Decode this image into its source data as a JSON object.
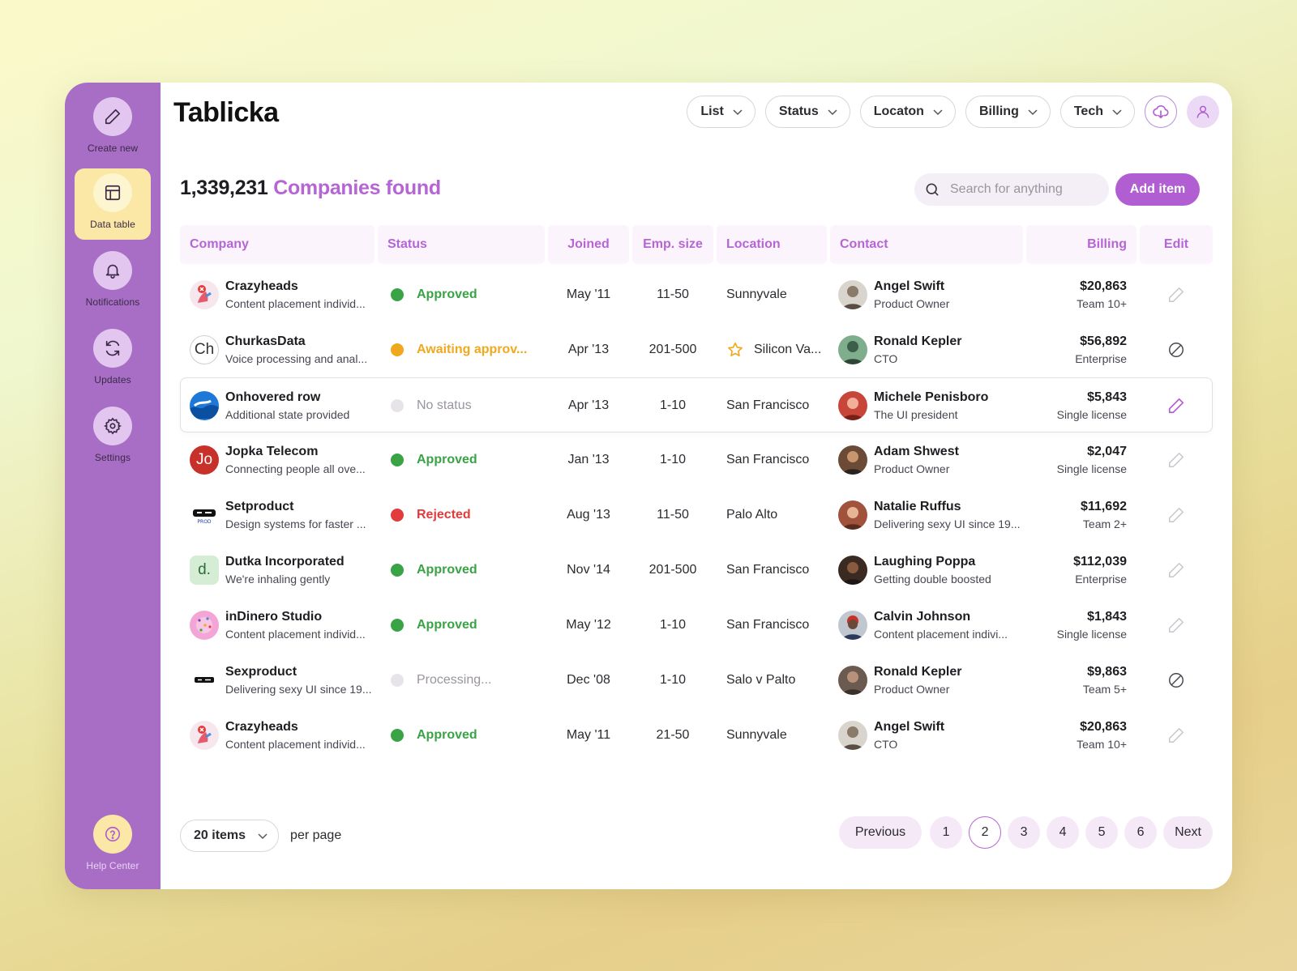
{
  "sidebar": {
    "items": [
      {
        "label": "Create new",
        "icon": "pencil-icon"
      },
      {
        "label": "Data table",
        "icon": "table-icon"
      },
      {
        "label": "Notifications",
        "icon": "bell-icon"
      },
      {
        "label": "Updates",
        "icon": "refresh-icon"
      },
      {
        "label": "Settings",
        "icon": "gear-icon"
      }
    ],
    "help": {
      "label": "Help Center",
      "icon": "help-icon"
    }
  },
  "header": {
    "logo": "Tablicka",
    "filters": [
      "List",
      "Status",
      "Locaton",
      "Billing",
      "Tech"
    ]
  },
  "summary": {
    "count": "1,339,231",
    "label": "Companies found"
  },
  "search": {
    "placeholder": "Search for anything"
  },
  "add_button": "Add item",
  "table": {
    "columns": [
      "Company",
      "Status",
      "Joined",
      "Emp. size",
      "Location",
      "Contact",
      "Billing",
      "Edit"
    ],
    "rows": [
      {
        "company": "Crazyheads",
        "desc": "Content placement individ...",
        "status": "Approved",
        "joined": "May '11",
        "size": "11-50",
        "location": "Sunnyvale",
        "contact": "Angel Swift",
        "role": "Product Owner",
        "amount": "$20,863",
        "plan": "Team 10+",
        "edit": "pencil"
      },
      {
        "company": "ChurkasData",
        "initials": "Ch",
        "desc": "Voice processing and anal...",
        "status": "Awaiting approv...",
        "joined": "Apr '13",
        "size": "201-500",
        "location": "Silicon Va...",
        "contact": "Ronald Kepler",
        "role": "CTO",
        "amount": "$56,892",
        "plan": "Enterprise",
        "edit": "blocked"
      },
      {
        "company": "Onhovered row",
        "desc": "Additional state provided",
        "status": "No status",
        "joined": "Apr '13",
        "size": "1-10",
        "location": "San Francisco",
        "contact": "Michele Penisboro",
        "role": "The UI president",
        "amount": "$5,843",
        "plan": "Single license",
        "edit": "pencil-active"
      },
      {
        "company": "Jopka Telecom",
        "initials": "Jo",
        "desc": "Connecting people all ove...",
        "status": "Approved",
        "joined": "Jan '13",
        "size": "1-10",
        "location": "San Francisco",
        "contact": "Adam Shwest",
        "role": "Product Owner",
        "amount": "$2,047",
        "plan": "Single license",
        "edit": "pencil"
      },
      {
        "company": "Setproduct",
        "desc": "Design systems for faster ...",
        "status": "Rejected",
        "joined": "Aug '13",
        "size": "11-50",
        "location": "Palo Alto",
        "contact": "Natalie Ruffus",
        "role": "Delivering sexy UI since 19...",
        "amount": "$11,692",
        "plan": "Team 2+",
        "edit": "pencil"
      },
      {
        "company": "Dutka Incorporated",
        "initials": "d.",
        "desc": "We're inhaling gently",
        "status": "Approved",
        "joined": "Nov '14",
        "size": "201-500",
        "location": "San Francisco",
        "contact": "Laughing Poppa",
        "role": "Getting double boosted",
        "amount": "$112,039",
        "plan": "Enterprise",
        "edit": "pencil"
      },
      {
        "company": "inDinero Studio",
        "desc": "Content placement individ...",
        "status": "Approved",
        "joined": "May '12",
        "size": "1-10",
        "location": "San Francisco",
        "contact": "Calvin Johnson",
        "role": "Content placement indivi...",
        "amount": "$1,843",
        "plan": "Single license",
        "edit": "pencil"
      },
      {
        "company": "Sexproduct",
        "desc": "Delivering sexy UI since 19...",
        "status": "Processing...",
        "joined": "Dec '08",
        "size": "1-10",
        "location": "Salo v Palto",
        "contact": "Ronald Kepler",
        "role": "Product Owner",
        "amount": "$9,863",
        "plan": "Team 5+",
        "edit": "blocked"
      },
      {
        "company": "Crazyheads",
        "desc": "Content placement individ...",
        "status": "Approved",
        "joined": "May '11",
        "size": "21-50",
        "location": "Sunnyvale",
        "contact": "Angel Swift",
        "role": "CTO",
        "amount": "$20,863",
        "plan": "Team 10+",
        "edit": "pencil"
      }
    ]
  },
  "pagination": {
    "per_page": "20 items",
    "per_page_label": "per page",
    "previous": "Previous",
    "next": "Next",
    "pages": [
      "1",
      "2",
      "3",
      "4",
      "5",
      "6"
    ],
    "current": "2"
  },
  "colors": {
    "sidebar": "#a86ec6",
    "accent": "#b565d4",
    "approved": "#3aa346",
    "awaiting": "#f0a91e",
    "rejected": "#e23b3b",
    "neutral": "#9a949d"
  }
}
